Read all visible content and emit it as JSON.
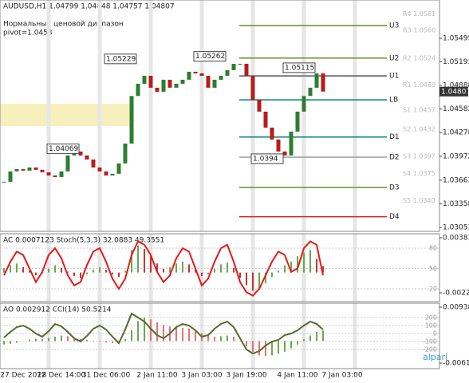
{
  "logo": "alpari",
  "chart_data": [
    {
      "type": "candle",
      "title": "AUDUSD,H1  1.04799 1.04848 1.04757 1.04807",
      "subtitle": "Нормальный ценовой диапазон",
      "note": "pivot=1.0453",
      "categories": [
        null,
        null,
        null,
        "27 Dec 2012",
        null,
        null,
        null,
        null,
        null,
        "28 Dec 14:00",
        null,
        null,
        null,
        null,
        null,
        null,
        "31 Dec 06:00",
        null,
        null,
        null,
        null,
        null,
        null,
        null,
        "2 Jan 11:00",
        null,
        null,
        null,
        null,
        null,
        null,
        "3 Jan 03:00",
        null,
        null,
        null,
        null,
        null,
        null,
        "3 Jan 19:00",
        null,
        null,
        null,
        null,
        null,
        null,
        null,
        "4 Jan 11:00",
        null,
        null,
        null,
        null,
        null,
        null,
        "7 Jan 03:00",
        null,
        null,
        null,
        null,
        null,
        null
      ],
      "values": [
        1.03642,
        1.03776,
        1.03806,
        1.03786,
        1.03827,
        1.03796,
        1.03765,
        1.03724,
        1.03703,
        1.03776,
        1.03982,
        1.04033,
        1.03982,
        1.0393,
        1.03827,
        1.03776,
        1.03724,
        1.03745,
        1.03879,
        1.04136,
        1.0475,
        1.04908,
        1.05011,
        1.04857,
        1.04805,
        1.0496,
        1.04857,
        1.04908,
        1.0496,
        1.05063,
        1.05042,
        1.05011,
        1.04857,
        1.0496,
        1.05011,
        1.05084,
        1.05166,
        1.05166,
        1.05011,
        1.04703,
        1.04548,
        1.04342,
        1.04188,
        1.04033,
        1.03982,
        1.0429,
        1.04548,
        1.0475,
        1.04857,
        1.05042,
        1.04807,
        null,
        null,
        null,
        null,
        null,
        null,
        null,
        null,
        null
      ],
      "up_color": "#2e7d32",
      "down_color": "#b71c1c",
      "ylim": [
        1.03001,
        1.0599
      ],
      "yticks": [
        1.05495,
        1.05193,
        1.04888,
        1.04582,
        1.04278,
        1.03972,
        1.03663,
        1.03358,
        1.03053
      ],
      "last_price": 1.04807,
      "pivots": [
        {
          "value": 1.0581,
          "label": "R4 1.0581"
        },
        {
          "value": 1.056,
          "label": "R3 1.0560"
        },
        {
          "value": 1.0524,
          "label": "R2 1.0524"
        },
        {
          "value": 1.0489,
          "label": "R1 1.0489"
        },
        {
          "value": 1.0457,
          "label": "S1 1.0457"
        },
        {
          "value": 1.0432,
          "label": "S2 1.0432"
        },
        {
          "value": 1.0397,
          "label": "S3 1.0397"
        },
        {
          "value": 1.0375,
          "label": "S4 1.0375"
        },
        {
          "value": 1.034,
          "label": "S5 1.0340"
        }
      ],
      "levels": [
        {
          "label": "U3",
          "value": 1.0566,
          "color": "#6b8e23"
        },
        {
          "label": "U2",
          "value": 1.0524,
          "color": "#6b8e23"
        },
        {
          "label": "U1",
          "value": 1.0501,
          "color": "#555555"
        },
        {
          "label": "LB",
          "value": 1.047,
          "color": "#008080"
        },
        {
          "label": "D1",
          "value": 1.0422,
          "color": "#008080"
        },
        {
          "label": "D2",
          "value": 1.0396,
          "color": "#999999"
        },
        {
          "label": "D3",
          "value": 1.0357,
          "color": "#6b8e23"
        },
        {
          "label": "D4",
          "value": 1.0319,
          "color": "#cc2222"
        }
      ],
      "price_labels": [
        1.05229,
        1.05262,
        1.05115,
        1.04069,
        1.0394
      ]
    },
    {
      "type": "oscillator",
      "title": "AC 0.0007123 Stoch(5,3,3) 32.0883 49.3551",
      "ylim": [
        -0.00321,
        0.00428
      ],
      "yticks": [
        0.003839,
        -0.002237
      ],
      "y2lim": [
        1.2,
        101.2
      ],
      "y2ticks": [
        80,
        50,
        20
      ],
      "series": [
        {
          "color": "#cc3333",
          "kind": "bars",
          "values": [
            0.0005,
            0.0008,
            0.001,
            0.0006,
            0.0002,
            -0.0003,
            -0.0001,
            0.0004,
            0.0008,
            0.0005,
            0.0001,
            -0.0004,
            -0.0006,
            -0.0002,
            0.0003,
            0.0006,
            0.0003,
            -0.0002,
            -0.0005,
            0.0002,
            0.0025,
            0.003,
            0.0026,
            0.0018,
            0.001,
            0.0004,
            0.0006,
            0.001,
            0.0012,
            0.0009,
            0.0003,
            -0.0004,
            -0.0002,
            0.0004,
            0.0009,
            0.0011,
            0.0005,
            -0.0006,
            -0.0014,
            -0.002,
            -0.0018,
            -0.0012,
            -0.0005,
            0.0002,
            0.0008,
            0.0012,
            0.0018,
            0.0022,
            0.0025,
            0.0015,
            0.0007
          ]
        },
        {
          "color": "#e31a1c",
          "kind": "line",
          "axis": "y2",
          "values": [
            40,
            60,
            75,
            70,
            50,
            30,
            45,
            70,
            80,
            65,
            40,
            25,
            30,
            55,
            75,
            80,
            60,
            35,
            20,
            35,
            70,
            90,
            85,
            70,
            45,
            30,
            40,
            65,
            80,
            75,
            50,
            25,
            35,
            60,
            80,
            85,
            60,
            30,
            15,
            10,
            20,
            40,
            60,
            75,
            70,
            45,
            50,
            80,
            90,
            85,
            40
          ]
        }
      ]
    },
    {
      "type": "oscillator",
      "title": "AO 0.002912 CCI(14) 50.5214",
      "ylim": [
        -0.00769,
        0.01049
      ],
      "yticks": [
        0.009381,
        -0.00614
      ],
      "y2lim": [
        -440,
        380
      ],
      "y2ticks": [
        200,
        100,
        0,
        -100,
        -200
      ],
      "series": [
        {
          "color": "#e57373",
          "kind": "bars",
          "values": [
            -0.001,
            -0.0008,
            -0.0005,
            0,
            0.0004,
            0.0006,
            0.0005,
            0.0008,
            0.0012,
            0.0015,
            0.0013,
            0.001,
            0.0006,
            0.0003,
            0.0001,
            -0.0002,
            -0.0004,
            -0.0006,
            -0.0005,
            0.0005,
            0.003,
            0.0055,
            0.0065,
            0.006,
            0.0052,
            0.0045,
            0.004,
            0.0038,
            0.0036,
            0.0035,
            0.003,
            0.0022,
            0.0015,
            0.0012,
            0.0013,
            0.0015,
            0.0012,
            0,
            -0.0015,
            -0.003,
            -0.004,
            -0.0042,
            -0.004,
            -0.0035,
            -0.003,
            -0.002,
            -0.001,
            0.0005,
            0.0015,
            0.0025,
            0.0029
          ]
        },
        {
          "color": "#556b2f",
          "kind": "line",
          "axis": "y2",
          "values": [
            -50,
            20,
            80,
            100,
            60,
            0,
            -40,
            30,
            120,
            90,
            20,
            -60,
            -100,
            -30,
            60,
            100,
            50,
            -40,
            -120,
            50,
            250,
            200,
            150,
            60,
            -20,
            -60,
            0,
            80,
            120,
            100,
            40,
            -40,
            -20,
            60,
            120,
            150,
            80,
            -60,
            -200,
            -250,
            -220,
            -150,
            -100,
            -80,
            -20,
            0,
            40,
            100,
            150,
            120,
            50
          ]
        }
      ]
    }
  ]
}
